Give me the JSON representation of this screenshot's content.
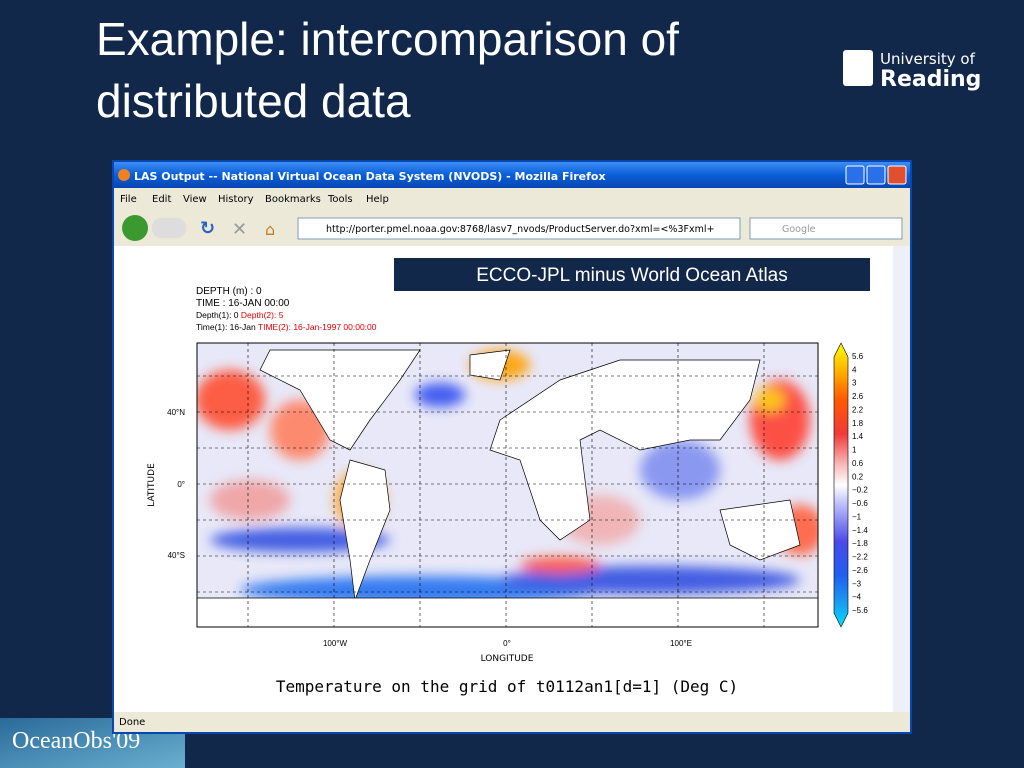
{
  "slide": {
    "title_line1": "Example: intercomparison of",
    "title_line2": "distributed data",
    "logo_top": "University of",
    "logo_bottom": "Reading",
    "footer_logo": "OceanObs'09"
  },
  "browser": {
    "window_title": "LAS Output -- National Virtual Ocean Data System (NVODS) - Mozilla Firefox",
    "menu": [
      "File",
      "Edit",
      "View",
      "History",
      "Bookmarks",
      "Tools",
      "Help"
    ],
    "url": "http://porter.pmel.noaa.gov:8768/lasv7_nvods/ProductServer.do?xml=<%3Fxml+",
    "search_placeholder": "Google",
    "status": "Done"
  },
  "content": {
    "banner": "ECCO-JPL minus World Ocean Atlas",
    "depth": "DEPTH (m) : 0",
    "time": "TIME : 16-JAN 00:00",
    "depth1": "Depth(1): 0",
    "depth2": "Depth(2): 5",
    "time1": "Time(1): 16-Jan",
    "time2": "TIME(2): 16-Jan-1997 00:00:00",
    "y_axis_label": "LATITUDE",
    "x_axis_label": "LONGITUDE",
    "y_ticks": [
      "40°N",
      "0°",
      "40°S"
    ],
    "x_ticks": [
      "100°W",
      "0°",
      "100°E"
    ],
    "colorbar_labels": [
      "5.6",
      "4",
      "3",
      "2.6",
      "2.2",
      "1.8",
      "1.4",
      "1",
      "0.6",
      "0.2",
      "−0.2",
      "−0.6",
      "−1",
      "−1.4",
      "−1.8",
      "−2.2",
      "−2.6",
      "−3",
      "−4",
      "−5.6"
    ],
    "caption": "Temperature on the grid of t0112an1[d=1] (Deg C)"
  }
}
